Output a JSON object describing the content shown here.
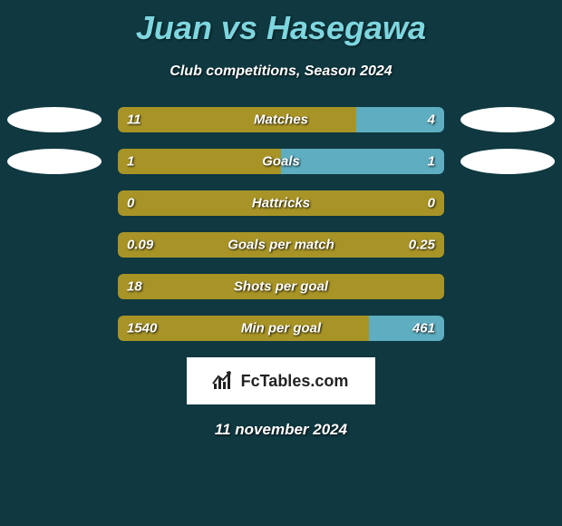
{
  "title": "Juan vs Hasegawa",
  "subtitle": "Club competitions, Season 2024",
  "date": "11 november 2024",
  "logo_text": "FcTables.com",
  "colors": {
    "background": "#0f3840",
    "title_color": "#7ed6df",
    "left_bar_color": "#a89426",
    "right_bar_color": "#5eadc0",
    "ellipse_color": "#ffffff",
    "text_color": "#ffffff"
  },
  "rows": [
    {
      "name": "Matches",
      "left_value": "11",
      "right_value": "4",
      "left_pct": 73,
      "right_pct": 27,
      "show_ellipses": true
    },
    {
      "name": "Goals",
      "left_value": "1",
      "right_value": "1",
      "left_pct": 50,
      "right_pct": 50,
      "show_ellipses": true
    },
    {
      "name": "Hattricks",
      "left_value": "0",
      "right_value": "0",
      "left_pct": 100,
      "right_pct": 0,
      "show_ellipses": false
    },
    {
      "name": "Goals per match",
      "left_value": "0.09",
      "right_value": "0.25",
      "left_pct": 100,
      "right_pct": 0,
      "show_ellipses": false
    },
    {
      "name": "Shots per goal",
      "left_value": "18",
      "right_value": "",
      "left_pct": 100,
      "right_pct": 0,
      "show_ellipses": false
    },
    {
      "name": "Min per goal",
      "left_value": "1540",
      "right_value": "461",
      "left_pct": 77,
      "right_pct": 23,
      "show_ellipses": false
    }
  ]
}
